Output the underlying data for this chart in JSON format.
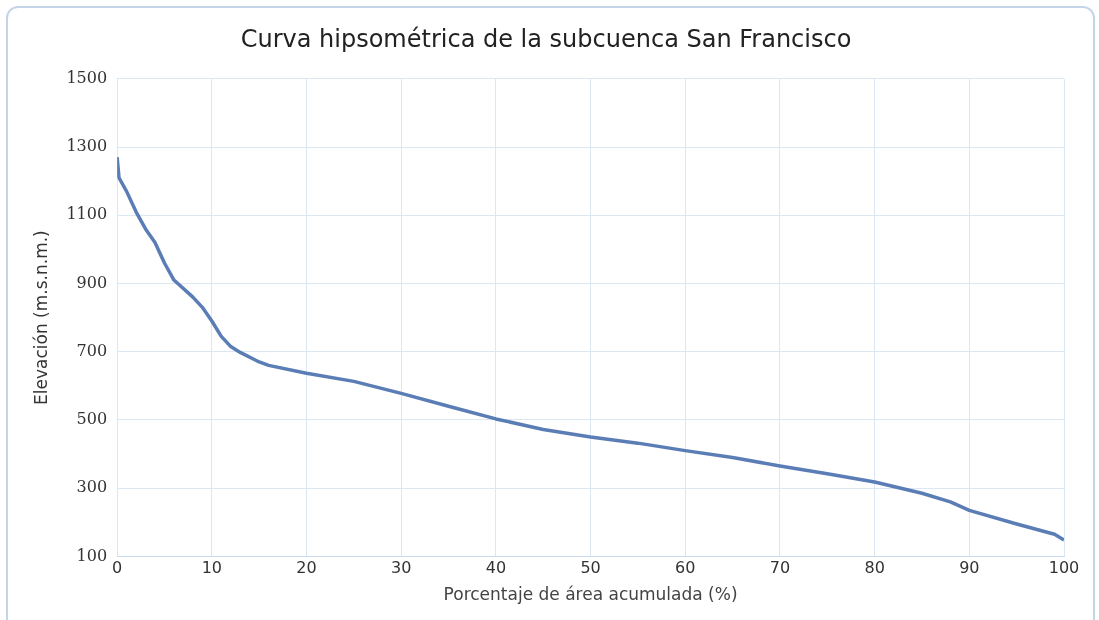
{
  "chart_data": {
    "type": "line",
    "title": "Curva hipsométrica de la subcuenca San Francisco",
    "xlabel": "Porcentaje de área acumulada (%)",
    "ylabel": "Elevación (m.s.n.m.)",
    "series": [
      {
        "color": "#5b7db5",
        "x": [
          0,
          0.2,
          1,
          2,
          3,
          4,
          5,
          6,
          8,
          9,
          10,
          11,
          12,
          13,
          15,
          16,
          20,
          25,
          30,
          35,
          40,
          45,
          50,
          55,
          60,
          65,
          70,
          75,
          80,
          85,
          88,
          90,
          95,
          99,
          100
        ],
        "values": [
          1270,
          1210,
          1170,
          1110,
          1060,
          1020,
          960,
          910,
          860,
          830,
          790,
          745,
          715,
          698,
          670,
          660,
          637,
          613,
          578,
          540,
          503,
          472,
          450,
          432,
          410,
          390,
          365,
          342,
          318,
          285,
          260,
          235,
          195,
          165,
          148
        ]
      }
    ],
    "xlim": [
      0,
      100
    ],
    "xticks": [
      0,
      10,
      20,
      30,
      40,
      50,
      60,
      70,
      80,
      90,
      100
    ],
    "ylim": [
      100,
      1500
    ],
    "yticks": [
      100,
      300,
      500,
      700,
      900,
      1100,
      1300,
      1500
    ],
    "grid": true,
    "legend": false,
    "marker": "none",
    "line_style": "solid"
  }
}
